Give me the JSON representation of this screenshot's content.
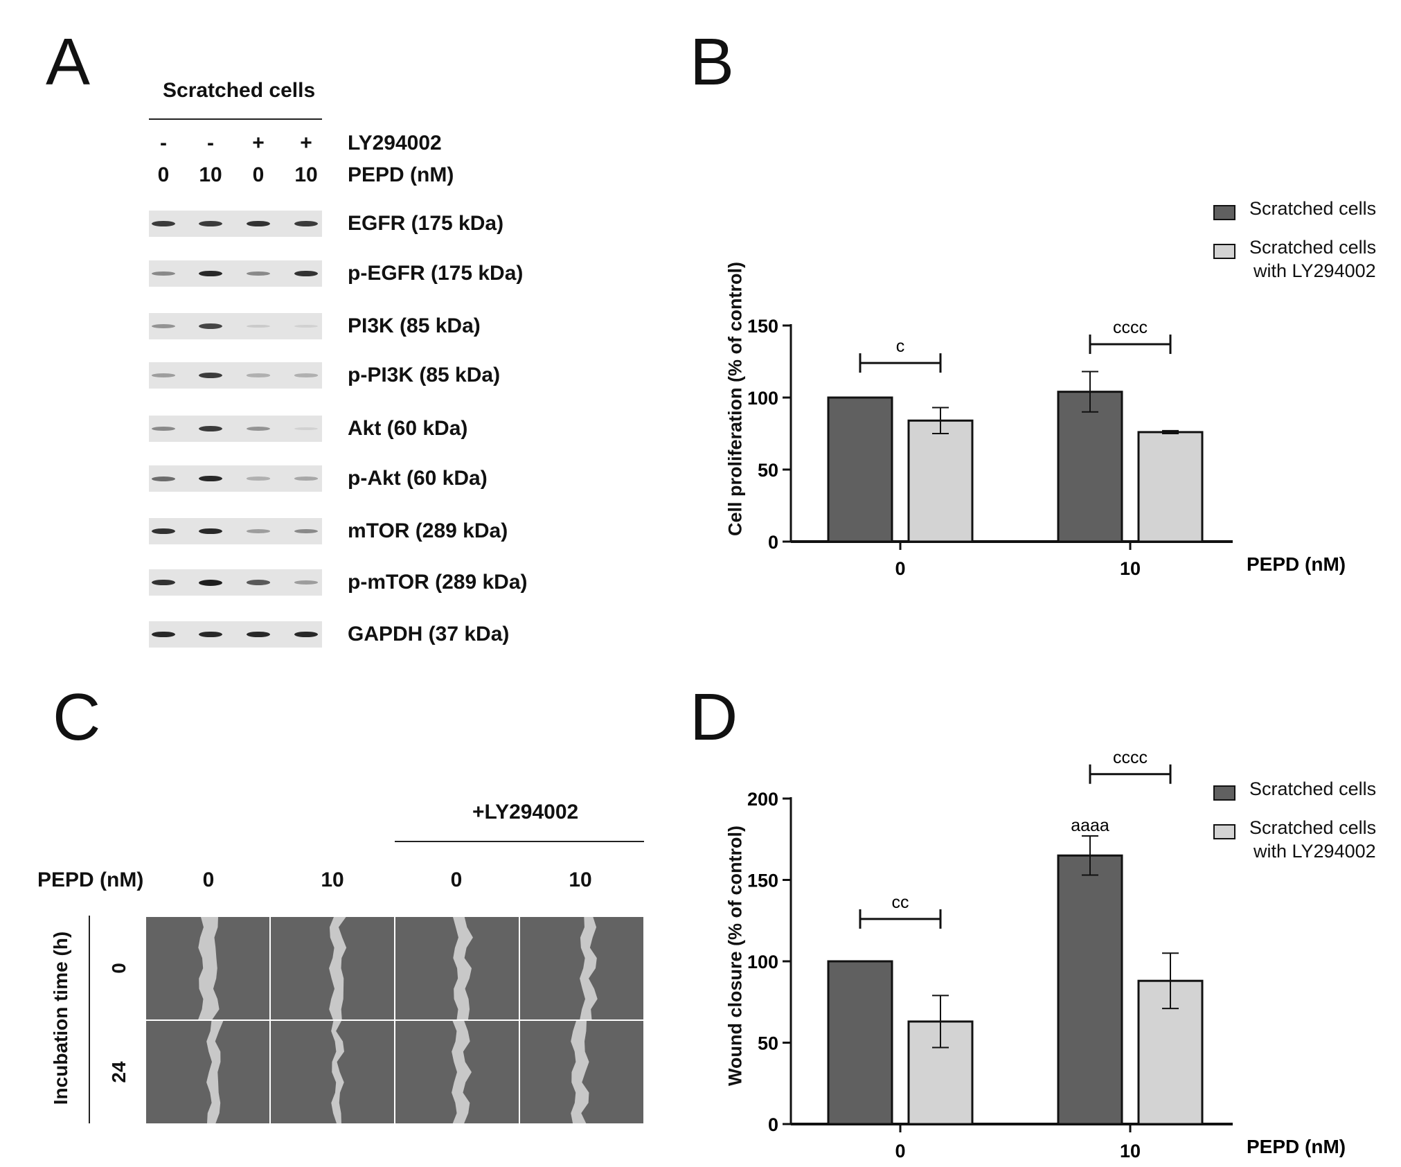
{
  "panels": {
    "A": {
      "letter": "A",
      "header": "Scratched cells",
      "treatment_rows": [
        {
          "symbols": [
            "-",
            "-",
            "+",
            "+"
          ],
          "label": "LY294002"
        },
        {
          "symbols": [
            "0",
            "10",
            "0",
            "10"
          ],
          "label": "PEPD (nM)"
        }
      ],
      "blots": [
        {
          "label": "EGFR (175 kDa)",
          "intensities": [
            0.85,
            0.85,
            0.9,
            0.85
          ]
        },
        {
          "label": "p-EGFR (175 kDa)",
          "intensities": [
            0.45,
            0.95,
            0.45,
            0.9
          ]
        },
        {
          "label": "PI3K (85 kDa)",
          "intensities": [
            0.4,
            0.8,
            0.12,
            0.08
          ]
        },
        {
          "label": "p-PI3K (85 kDa)",
          "intensities": [
            0.35,
            0.85,
            0.25,
            0.25
          ]
        },
        {
          "label": "Akt (60 kDa)",
          "intensities": [
            0.45,
            0.85,
            0.4,
            0.08
          ]
        },
        {
          "label": "p-Akt (60 kDa)",
          "intensities": [
            0.6,
            0.95,
            0.25,
            0.3
          ]
        },
        {
          "label": "mTOR (289 kDa)",
          "intensities": [
            0.9,
            0.95,
            0.35,
            0.45
          ]
        },
        {
          "label": "p-mTOR (289 kDa)",
          "intensities": [
            0.9,
            1.0,
            0.7,
            0.35
          ]
        },
        {
          "label": "GAPDH (37 kDa)",
          "intensities": [
            0.95,
            0.95,
            0.95,
            0.95
          ]
        }
      ]
    },
    "B": {
      "letter": "B"
    },
    "C": {
      "letter": "C",
      "ly_label": "+LY294002",
      "pepd_label": "PEPD (nM)",
      "columns": [
        "0",
        "10",
        "0",
        "10"
      ],
      "time_axis_label": "Incubation time (h)",
      "rows": [
        "0",
        "24"
      ]
    },
    "D": {
      "letter": "D"
    }
  },
  "chart_data": [
    {
      "id": "B",
      "type": "bar",
      "categories": [
        "0",
        "10"
      ],
      "xlabel": "PEPD (nM)",
      "ylabel": "Cell proliferation (% of control)",
      "ylim": [
        0,
        150
      ],
      "yticks": [
        "0",
        "50",
        "100",
        "150"
      ],
      "series": [
        {
          "name": "Scratched cells",
          "color": "#606060",
          "values": [
            100,
            104
          ],
          "errors": [
            0,
            14
          ]
        },
        {
          "name": "Scratched cells with LY294002",
          "legend_lines": [
            "Scratched cells",
            "with LY294002"
          ],
          "color": "#d3d3d3",
          "values": [
            84,
            76
          ],
          "errors": [
            9,
            1
          ]
        }
      ],
      "brackets": [
        {
          "category": 0,
          "y": 124,
          "label": "c"
        },
        {
          "category": 1,
          "y": 137,
          "label": "cccc"
        }
      ],
      "annotations": []
    },
    {
      "id": "D",
      "type": "bar",
      "categories": [
        "0",
        "10"
      ],
      "xlabel": "PEPD (nM)",
      "ylabel": "Wound closure (% of control)",
      "ylim": [
        0,
        200
      ],
      "yticks": [
        "0",
        "50",
        "100",
        "150",
        "200"
      ],
      "series": [
        {
          "name": "Scratched cells",
          "color": "#606060",
          "values": [
            100,
            165
          ],
          "errors": [
            0,
            12
          ]
        },
        {
          "name": "Scratched cells with LY294002",
          "legend_lines": [
            "Scratched cells",
            "with LY294002"
          ],
          "color": "#d3d3d3",
          "values": [
            63,
            88
          ],
          "errors": [
            16,
            17
          ]
        }
      ],
      "brackets": [
        {
          "category": 0,
          "y": 126,
          "label": "cc"
        },
        {
          "category": 1,
          "y": 215,
          "label": "cccc"
        }
      ],
      "annotations": [
        {
          "category": 1,
          "series": 0,
          "y": 180,
          "label": "aaaa"
        }
      ]
    }
  ]
}
